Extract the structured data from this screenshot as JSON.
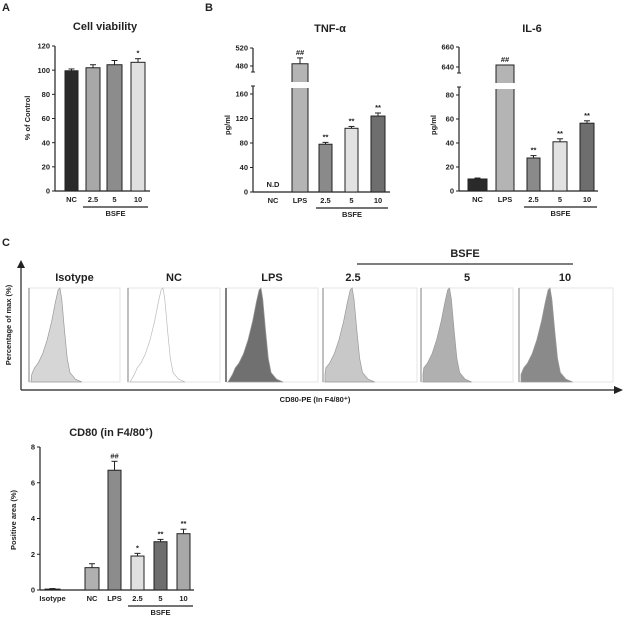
{
  "panel_labels": {
    "a": "A",
    "b": "B",
    "c": "C"
  },
  "chart_data": [
    {
      "id": "viability",
      "type": "bar",
      "title": "Cell viability",
      "ylabel": "% of Control",
      "categories": [
        "NC",
        "2.5",
        "5",
        "10"
      ],
      "values": [
        99.5,
        102,
        104.5,
        106.5
      ],
      "errors": [
        1.5,
        2.5,
        3.5,
        3
      ],
      "colors": [
        "#2a2a2a",
        "#a8a8a8",
        "#8c8c8c",
        "#e0e0e0"
      ],
      "annotations": [
        "",
        "",
        "",
        "*"
      ],
      "ylim": [
        0,
        120
      ],
      "yticks": [
        0,
        20,
        40,
        60,
        80,
        100,
        120
      ],
      "group_label": "BSFE",
      "group": [
        1,
        3
      ]
    },
    {
      "id": "tnf",
      "type": "bar",
      "title": "TNF-α",
      "ylabel": "pg/ml",
      "categories": [
        "NC",
        "LPS",
        "2.5",
        "5",
        "10"
      ],
      "values": [
        0,
        485,
        78,
        104,
        124
      ],
      "errors": [
        0,
        13,
        3,
        3,
        5
      ],
      "colors": [
        "#ffffff",
        "#b4b4b4",
        "#8a8a8a",
        "#e2e2e2",
        "#6e6e6e"
      ],
      "annotations": [
        "N.D",
        "##",
        "**",
        "**",
        "**"
      ],
      "ylim": [
        0,
        520
      ],
      "axis_break": [
        180,
        460
      ],
      "yticks": [
        0,
        40,
        80,
        120,
        160,
        480,
        520
      ],
      "group_label": "BSFE",
      "group": [
        2,
        4
      ]
    },
    {
      "id": "il6",
      "type": "bar",
      "title": "IL-6",
      "ylabel": "pg/ml",
      "categories": [
        "NC",
        "LPS",
        "2.5",
        "5",
        "10"
      ],
      "values": [
        10,
        642,
        27.5,
        41,
        56.5
      ],
      "errors": [
        0.8,
        0,
        2,
        2.5,
        2
      ],
      "colors": [
        "#2a2a2a",
        "#b4b4b4",
        "#8a8a8a",
        "#e2e2e2",
        "#6e6e6e"
      ],
      "annotations": [
        "",
        "##",
        "**",
        "**",
        "**"
      ],
      "ylim": [
        0,
        660
      ],
      "axis_break": [
        90,
        630
      ],
      "yticks": [
        0,
        20,
        40,
        60,
        80,
        640,
        660
      ],
      "group_label": "BSFE",
      "group": [
        2,
        4
      ]
    },
    {
      "id": "cd80",
      "type": "bar",
      "title": "CD80 (in F4/80",
      "title_sup": "+",
      "title_end": ")",
      "ylabel": "Positive area (%)",
      "categories": [
        "Isotype",
        "NC",
        "LPS",
        "2.5",
        "5",
        "10"
      ],
      "values": [
        0.05,
        1.25,
        6.7,
        1.9,
        2.7,
        3.15
      ],
      "errors": [
        0.03,
        0.22,
        0.5,
        0.15,
        0.13,
        0.25
      ],
      "colors": [
        "#cfcfcf",
        "#b0b0b0",
        "#8c8c8c",
        "#e0e0e0",
        "#6e6e6e",
        "#a8a8a8"
      ],
      "annotations": [
        "",
        "",
        "##",
        "*",
        "**",
        "**"
      ],
      "ylim": [
        0,
        8
      ],
      "yticks": [
        0,
        2,
        4,
        6,
        8
      ],
      "group_label": "BSFE",
      "group": [
        3,
        5
      ]
    }
  ],
  "flow": {
    "ylabel": "Percentage of max (%)",
    "xlabel": "CD80-PE (In F4/80⁺)",
    "group_label": "BSFE",
    "histograms": [
      {
        "label": "Isotype",
        "fill": "#d6d6d6"
      },
      {
        "label": "NC",
        "fill": "none"
      },
      {
        "label": "LPS",
        "fill": "#707070"
      },
      {
        "label": "2.5",
        "fill": "#c8c8c8"
      },
      {
        "label": "5",
        "fill": "#b0b0b0"
      },
      {
        "label": "10",
        "fill": "#8a8a8a"
      }
    ]
  }
}
